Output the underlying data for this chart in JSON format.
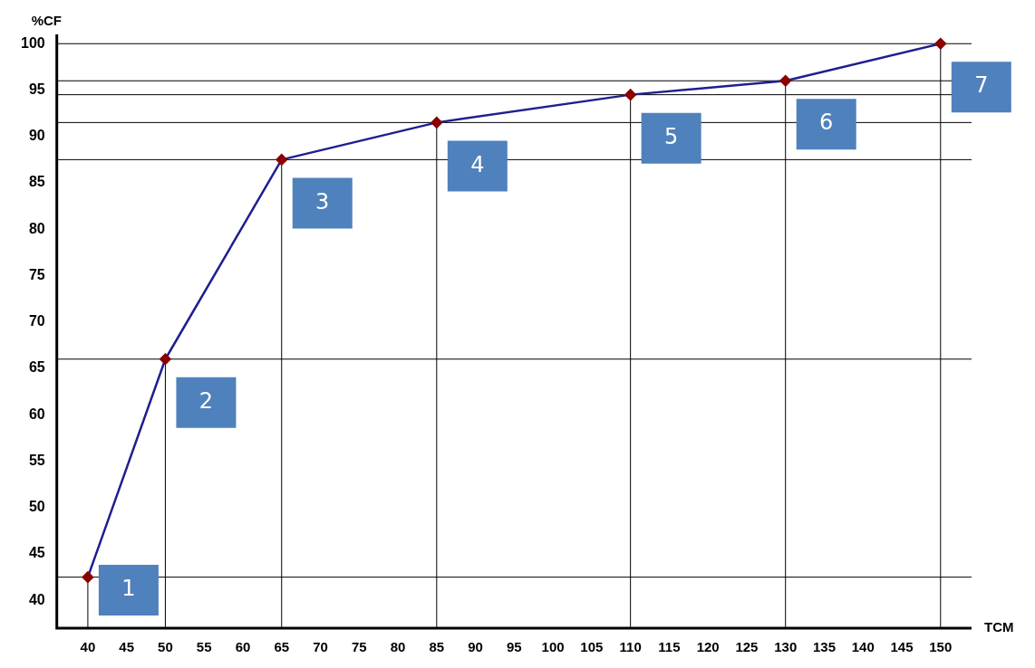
{
  "chart_data": {
    "type": "line",
    "xlabel": "TCM",
    "ylabel": "%CF",
    "x": [
      40,
      50,
      65,
      85,
      110,
      130,
      150
    ],
    "series": [
      {
        "color": "#1f1f8f",
        "values": [
          42.5,
          66,
          87.5,
          91.5,
          94.5,
          96,
          100
        ]
      }
    ],
    "marker": "diamond",
    "line_style": "solid",
    "grid": false,
    "legend": false,
    "xlim": [
      36,
      154
    ],
    "xticks": [
      40,
      45,
      50,
      55,
      60,
      65,
      70,
      75,
      80,
      85,
      90,
      95,
      100,
      105,
      110,
      115,
      120,
      125,
      130,
      135,
      140,
      145,
      150
    ],
    "ylim": [
      37,
      101
    ],
    "yticks": [
      40,
      45,
      50,
      55,
      60,
      65,
      70,
      75,
      80,
      85,
      90,
      95,
      100
    ],
    "ref_lines": [
      {
        "axis": "x",
        "value": 40
      },
      {
        "axis": "x",
        "value": 50
      },
      {
        "axis": "x",
        "value": 65
      },
      {
        "axis": "x",
        "value": 85
      },
      {
        "axis": "x",
        "value": 110
      },
      {
        "axis": "x",
        "value": 130
      },
      {
        "axis": "x",
        "value": 150
      },
      {
        "axis": "y",
        "value": 42.5
      },
      {
        "axis": "y",
        "value": 66
      },
      {
        "axis": "y",
        "value": 87.5
      },
      {
        "axis": "y",
        "value": 91.5
      },
      {
        "axis": "y",
        "value": 94.5
      },
      {
        "axis": "y",
        "value": 96
      },
      {
        "axis": "y",
        "value": 100
      }
    ],
    "annotations": [
      {
        "text": "1",
        "x": 40,
        "y": 42.5
      },
      {
        "text": "2",
        "x": 50,
        "y": 66
      },
      {
        "text": "3",
        "x": 65,
        "y": 87.5
      },
      {
        "text": "4",
        "x": 85,
        "y": 91.5
      },
      {
        "text": "5",
        "x": 110,
        "y": 94.5
      },
      {
        "text": "6",
        "x": 130,
        "y": 96
      },
      {
        "text": "7",
        "x": 150,
        "y": 100
      }
    ]
  }
}
